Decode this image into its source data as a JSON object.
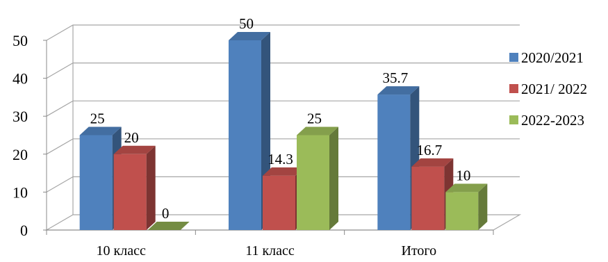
{
  "chart_data": {
    "type": "bar",
    "categories": [
      "10 класс",
      "11 класс",
      "Итого"
    ],
    "series": [
      {
        "name": "2020/2021",
        "values": [
          25,
          50,
          35.7
        ],
        "labels": [
          "25",
          "50",
          "35.7"
        ],
        "color": "#4f81bd"
      },
      {
        "name": "2021/ 2022",
        "values": [
          20,
          14.3,
          16.7
        ],
        "labels": [
          "20",
          "14.3",
          "16.7"
        ],
        "color": "#c0504d"
      },
      {
        "name": "2022-2023",
        "values": [
          0,
          25,
          10
        ],
        "labels": [
          "0",
          "25",
          "10"
        ],
        "color": "#9bbb59"
      }
    ],
    "yticks": [
      "0",
      "10",
      "20",
      "30",
      "40",
      "50"
    ],
    "ylim": [
      0,
      50
    ],
    "grid": true,
    "legend_position": "right",
    "style": "3d-clustered-column"
  }
}
